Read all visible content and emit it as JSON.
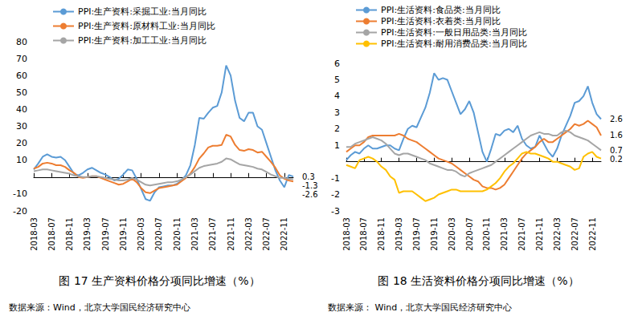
{
  "chart_data": [
    {
      "type": "line",
      "title": "图 17 生产资料价格分项同比增速（%）",
      "source": "数据来源：Wind，北京大学国民经济研究中心",
      "categories": [
        "2018-03",
        null,
        null,
        null,
        "2018-07",
        null,
        null,
        null,
        "2018-11",
        null,
        null,
        null,
        "2019-03",
        null,
        null,
        null,
        "2019-07",
        null,
        null,
        null,
        "2019-11",
        null,
        null,
        null,
        "2020-03",
        null,
        null,
        null,
        "2020-07",
        null,
        null,
        null,
        "2020-11",
        null,
        null,
        null,
        "2021-03",
        null,
        null,
        null,
        "2021-07",
        null,
        null,
        null,
        "2021-11",
        null,
        null,
        null,
        "2022-03",
        null,
        null,
        null,
        "2022-07",
        null,
        null,
        null,
        "2022-11",
        null,
        null
      ],
      "ylim": [
        -20,
        80
      ],
      "yticks": [
        -20,
        -10,
        10,
        20,
        30,
        40,
        50,
        60,
        70,
        80
      ],
      "grid": false,
      "legend": "top-left",
      "series": [
        {
          "name": "PPI:生产资料:采掘工业:当月同比",
          "color": "#5b9bd5",
          "values": [
            4.5,
            8,
            12,
            13.5,
            12,
            11.5,
            12,
            10,
            6,
            2,
            1,
            2.5,
            4.5,
            5.5,
            4,
            2.5,
            1.5,
            0,
            -2,
            -1,
            1.5,
            4.5,
            4,
            -1,
            -7,
            -13,
            -14,
            -9,
            -6,
            -5.5,
            -5,
            -5,
            -4,
            -2,
            1,
            7,
            19,
            35,
            34.5,
            38,
            41,
            42,
            50,
            66,
            60,
            45,
            35,
            33,
            38,
            38,
            30,
            28,
            20,
            12,
            4,
            -2,
            -6,
            1.2,
            0.3
          ]
        },
        {
          "name": "PPI:生产资料:原材料工业:当月同比",
          "color": "#ed7d31",
          "values": [
            5,
            6,
            8,
            8.5,
            8,
            7,
            7,
            6,
            4,
            2.5,
            0,
            -0.5,
            0,
            0.5,
            0.5,
            -0.5,
            -1.5,
            -2.5,
            -3.5,
            -4.5,
            -4,
            -2.5,
            -1,
            -3,
            -6.5,
            -9,
            -9.5,
            -8,
            -6.5,
            -6,
            -5.5,
            -5,
            -4.5,
            -2.5,
            -0.5,
            2,
            6,
            11,
            14,
            17.5,
            18.5,
            18.5,
            19,
            25,
            24,
            19,
            16,
            15.5,
            16.5,
            16,
            14.5,
            15,
            12,
            9,
            5.5,
            1,
            -1,
            -2,
            -2.6
          ]
        },
        {
          "name": "PPI:生产资料:加工工业:当月同比",
          "color": "#a5a5a5",
          "values": [
            3.5,
            4,
            4.5,
            4.5,
            4,
            3.5,
            3,
            2.5,
            2,
            1,
            0.5,
            0,
            0,
            0.5,
            0.5,
            0,
            -0.5,
            -1,
            -1.5,
            -2,
            -2,
            -1.5,
            -0.5,
            -1.5,
            -3,
            -4.5,
            -5,
            -4.5,
            -4,
            -3.5,
            -3,
            -3,
            -2.5,
            -1.5,
            0,
            1.5,
            3.5,
            5.5,
            6.5,
            7,
            7.5,
            8,
            9,
            11,
            10.5,
            9,
            7.5,
            7,
            6.5,
            6,
            5,
            4.5,
            3,
            1.5,
            0.5,
            -0.5,
            -0.5,
            -1,
            -1.3
          ]
        }
      ],
      "annotations": [
        {
          "series": "PPI:生产资料:采掘工业:当月同比",
          "text": "0.3"
        },
        {
          "series": "PPI:生产资料:加工工业:当月同比",
          "text": "-1.3"
        },
        {
          "series": "PPI:生产资料:原材料工业:当月同比",
          "text": "-2.6"
        }
      ]
    },
    {
      "type": "line",
      "title": "图 18 生活资料价格分项同比增速（%）",
      "source": "数据来源： Wind，北京大学国民经济研究中心",
      "categories": [
        "2018-03",
        null,
        null,
        null,
        "2018-07",
        null,
        null,
        null,
        "2018-11",
        null,
        null,
        null,
        "2019-03",
        null,
        null,
        null,
        "2019-07",
        null,
        null,
        null,
        "2019-11",
        null,
        null,
        null,
        "2020-03",
        null,
        null,
        null,
        "2020-07",
        null,
        null,
        null,
        "2020-11",
        null,
        null,
        null,
        "2021-03",
        null,
        null,
        null,
        "2021-07",
        null,
        null,
        null,
        "2021-11",
        null,
        null,
        null,
        "2022-03",
        null,
        null,
        null,
        "2022-07",
        null,
        null,
        null,
        "2022-11",
        null,
        null
      ],
      "ylim": [
        -3,
        6
      ],
      "yticks": [
        -3,
        -2,
        -1,
        1,
        2,
        3,
        4,
        5,
        6
      ],
      "grid": false,
      "legend": "top-left",
      "series": [
        {
          "name": "PPI:生活资料:食品类:当月同比",
          "color": "#5b9bd5",
          "values": [
            0.1,
            0.4,
            0.6,
            0.5,
            0.8,
            1.0,
            0.8,
            0.8,
            0.9,
            1.0,
            1.0,
            0.8,
            0.7,
            1.4,
            2.0,
            2.2,
            2.1,
            2.7,
            3.3,
            4.2,
            5.4,
            5.0,
            5.1,
            5.0,
            4.3,
            3.6,
            2.9,
            3.2,
            3.7,
            3.0,
            1.8,
            0.6,
            0.0,
            0.8,
            1.7,
            1.6,
            1.9,
            2.0,
            1.8,
            2.2,
            1.4,
            1.0,
            0.8,
            0.9,
            1.6,
            1.1,
            0.6,
            0.3,
            0.8,
            1.6,
            2.2,
            2.8,
            3.6,
            3.7,
            4.0,
            4.6,
            3.6,
            2.9,
            2.6
          ]
        },
        {
          "name": "PPI:生活资料:衣着类:当月同比",
          "color": "#ed7d31",
          "values": [
            0.6,
            0.8,
            1.0,
            1.0,
            1.2,
            1.5,
            1.6,
            1.6,
            1.6,
            1.6,
            1.6,
            1.6,
            1.7,
            1.6,
            1.4,
            1.3,
            1.2,
            1.0,
            0.8,
            0.6,
            0.4,
            0.2,
            0.1,
            0.0,
            -0.1,
            -0.3,
            -0.5,
            -0.7,
            -0.9,
            -1.1,
            -1.2,
            -1.5,
            -1.6,
            -1.6,
            -1.7,
            -1.6,
            -1.4,
            -1.0,
            -0.6,
            -0.2,
            0.2,
            0.5,
            0.7,
            0.9,
            1.2,
            1.4,
            1.2,
            1.2,
            1.4,
            1.6,
            1.8,
            2.0,
            2.3,
            2.2,
            2.3,
            2.5,
            2.3,
            2.1,
            1.6
          ]
        },
        {
          "name": "PPI:生活资料:一般日用品类:当月同比",
          "color": "#a5a5a5",
          "values": [
            0.9,
            0.9,
            1.1,
            1.2,
            1.3,
            1.4,
            1.5,
            1.4,
            1.3,
            1.1,
            0.8,
            0.5,
            0.4,
            0.5,
            0.5,
            0.4,
            0.3,
            0.2,
            0.1,
            -0.1,
            -0.2,
            -0.3,
            -0.4,
            -0.5,
            -0.5,
            -0.6,
            -0.8,
            -0.9,
            -0.7,
            -0.6,
            -0.5,
            -0.4,
            -0.3,
            -0.2,
            0.0,
            0.2,
            0.4,
            0.6,
            0.8,
            1.0,
            1.2,
            1.4,
            1.6,
            1.7,
            1.8,
            1.7,
            1.7,
            1.6,
            1.6,
            1.8,
            1.9,
            1.8,
            1.6,
            1.5,
            1.4,
            1.3,
            1.1,
            0.9,
            0.7
          ]
        },
        {
          "name": "PPI:生活资料:耐用消费品类:当月同比",
          "color": "#ffc000",
          "values": [
            -0.2,
            -0.3,
            -0.4,
            0.1,
            0.2,
            0.3,
            0.2,
            0.0,
            -0.3,
            -0.5,
            -0.9,
            -1.1,
            -1.9,
            -1.8,
            -1.8,
            -1.8,
            -2.0,
            -2.2,
            -2.4,
            -2.3,
            -2.2,
            -2.0,
            -1.9,
            -1.8,
            -1.7,
            -1.7,
            -1.8,
            -1.8,
            -1.8,
            -1.8,
            -1.8,
            -1.8,
            -1.7,
            -1.5,
            -1.3,
            -1.0,
            -0.6,
            -0.3,
            -0.1,
            0.2,
            0.5,
            0.6,
            0.5,
            0.5,
            0.4,
            0.3,
            0.2,
            0.0,
            0.0,
            -0.1,
            -0.2,
            -0.3,
            -0.5,
            -0.4,
            0.3,
            0.5,
            0.6,
            0.3,
            0.2
          ]
        }
      ],
      "annotations": [
        {
          "series": "PPI:生活资料:食品类:当月同比",
          "text": "2.6"
        },
        {
          "series": "PPI:生活资料:衣着类:当月同比",
          "text": "1.6"
        },
        {
          "series": "PPI:生活资料:一般日用品类:当月同比",
          "text": "0.7"
        },
        {
          "series": "PPI:生活资料:耐用消费品类:当月同比",
          "text": "0.2"
        }
      ]
    }
  ]
}
